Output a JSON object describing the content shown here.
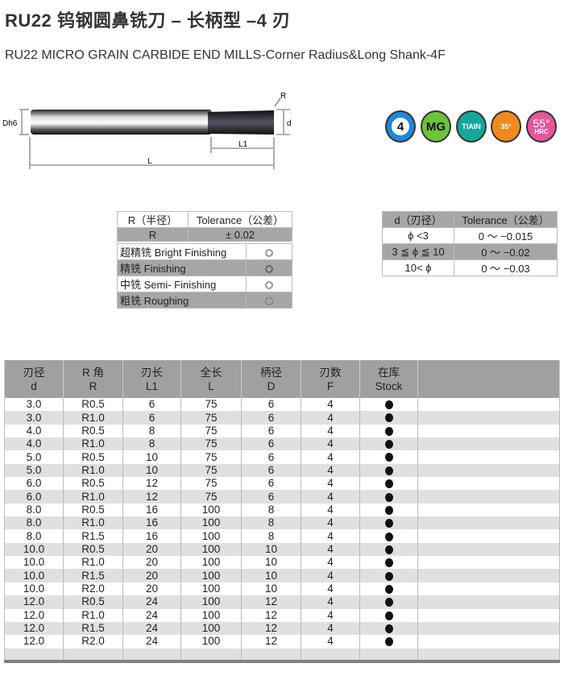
{
  "title": "RU22 钨钢圆鼻铣刀 – 长柄型 –4 刃",
  "subtitle": "RU22 MICRO GRAIN CARBIDE END MILLS-Corner Radius&Long Shank-4F",
  "drawing": {
    "dh6": "Dh6",
    "r": "R",
    "d": "d",
    "l1": "L1",
    "l": "L"
  },
  "badges": [
    {
      "icon": "four-flute-icon",
      "label": "4",
      "color": "#1e88d8"
    },
    {
      "icon": "material-icon",
      "label": "MG",
      "color": "#6cc33a"
    },
    {
      "icon": "coating-icon",
      "label": "TIAIN",
      "color": "#14a89a"
    },
    {
      "icon": "helix-angle-icon",
      "label": "35°",
      "color": "#f08a1e"
    },
    {
      "icon": "hardness-icon",
      "label": "55°",
      "sub": "HRC",
      "color": "#e8559a"
    }
  ],
  "r_table": {
    "headers": [
      "R（半径）",
      "Tolerance（公差）"
    ],
    "row": [
      "R",
      "± 0.02"
    ]
  },
  "finish_table": [
    {
      "label": "超精铣 Bright Finishing",
      "mark": "ring"
    },
    {
      "label": "精铣 Finishing",
      "mark": "ring"
    },
    {
      "label": "中铣 Semi- Finishing",
      "mark": "ring"
    },
    {
      "label": "粗铣 Roughing",
      "mark": "open-ring"
    }
  ],
  "d_table": {
    "headers": [
      "d（刃径）",
      "Tolerance（公差）"
    ],
    "rows": [
      [
        "ϕ <3",
        "0 ～ −0.015"
      ],
      [
        "3 ≦ ϕ ≦ 10",
        "0 ～ −0.02"
      ],
      [
        "10< ϕ",
        "0 ～ −0.03"
      ]
    ]
  },
  "main_table": {
    "headers": [
      [
        "刃径",
        "d"
      ],
      [
        "R 角",
        "R"
      ],
      [
        "刃长",
        "L1"
      ],
      [
        "全长",
        "L"
      ],
      [
        "柄径",
        "D"
      ],
      [
        "刃数",
        "F"
      ],
      [
        "在库",
        "Stock"
      ]
    ],
    "rows": [
      [
        "3.0",
        "R0.5",
        "6",
        "75",
        "6",
        "4",
        "●"
      ],
      [
        "3.0",
        "R1.0",
        "6",
        "75",
        "6",
        "4",
        "●"
      ],
      [
        "4.0",
        "R0.5",
        "8",
        "75",
        "6",
        "4",
        "●"
      ],
      [
        "4.0",
        "R1.0",
        "8",
        "75",
        "6",
        "4",
        "●"
      ],
      [
        "5.0",
        "R0.5",
        "10",
        "75",
        "6",
        "4",
        "●"
      ],
      [
        "5.0",
        "R1.0",
        "10",
        "75",
        "6",
        "4",
        "●"
      ],
      [
        "6.0",
        "R0.5",
        "12",
        "75",
        "6",
        "4",
        "●"
      ],
      [
        "6.0",
        "R1.0",
        "12",
        "75",
        "6",
        "4",
        "●"
      ],
      [
        "8.0",
        "R0.5",
        "16",
        "100",
        "8",
        "4",
        "●"
      ],
      [
        "8.0",
        "R1.0",
        "16",
        "100",
        "8",
        "4",
        "●"
      ],
      [
        "8.0",
        "R1.5",
        "16",
        "100",
        "8",
        "4",
        "●"
      ],
      [
        "10.0",
        "R0.5",
        "20",
        "100",
        "10",
        "4",
        "●"
      ],
      [
        "10.0",
        "R1.0",
        "20",
        "100",
        "10",
        "4",
        "●"
      ],
      [
        "10.0",
        "R1.5",
        "20",
        "100",
        "10",
        "4",
        "●"
      ],
      [
        "10.0",
        "R2.0",
        "20",
        "100",
        "10",
        "4",
        "●"
      ],
      [
        "12.0",
        "R0.5",
        "24",
        "100",
        "12",
        "4",
        "●"
      ],
      [
        "12.0",
        "R1.0",
        "24",
        "100",
        "12",
        "4",
        "●"
      ],
      [
        "12.0",
        "R1.5",
        "24",
        "100",
        "12",
        "4",
        "●"
      ],
      [
        "12.0",
        "R2.0",
        "24",
        "100",
        "12",
        "4",
        "●"
      ]
    ]
  }
}
